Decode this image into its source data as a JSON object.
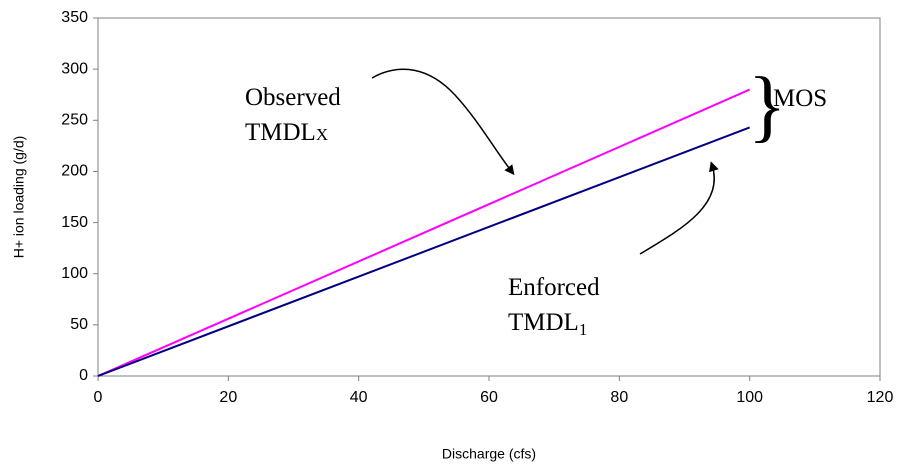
{
  "chart_data": {
    "type": "line",
    "x_label": "Discharge (cfs)",
    "y_label": "H+ ion loading (g/d)",
    "x": [
      0,
      100
    ],
    "series": [
      {
        "name": "Observed TMDLX",
        "color": "#ff00ff",
        "values": [
          0,
          280
        ]
      },
      {
        "name": "Enforced TMDL1",
        "color": "#000080",
        "values": [
          0,
          243
        ]
      }
    ],
    "xlim": [
      0,
      120
    ],
    "xticks": [
      0,
      20,
      40,
      60,
      80,
      100,
      120
    ],
    "ylim": [
      0,
      350
    ],
    "yticks": [
      0,
      50,
      100,
      150,
      200,
      250,
      300,
      350
    ],
    "grid": false,
    "annotations": {
      "observed": {
        "line1": "Observed",
        "line2": "TMDL",
        "sub": "X"
      },
      "enforced": {
        "line1": "Enforced",
        "line2": "TMDL",
        "sub": "1"
      },
      "mos": "MOS"
    }
  }
}
